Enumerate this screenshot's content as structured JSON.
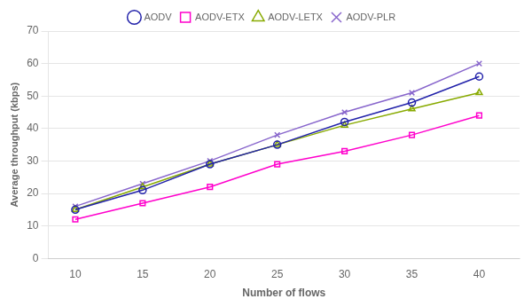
{
  "chart_data": {
    "type": "line",
    "xlabel": "Number of flows",
    "ylabel": "Average throughput (kbps)",
    "x": [
      10,
      15,
      20,
      25,
      30,
      35,
      40
    ],
    "series": [
      {
        "name": "AODV",
        "color": "#2222aa",
        "marker": "circle",
        "values": [
          15,
          21,
          29,
          35,
          42,
          48,
          56
        ]
      },
      {
        "name": "AODV-ETX",
        "color": "#ff00cc",
        "marker": "square",
        "values": [
          12,
          17,
          22,
          29,
          33,
          38,
          44
        ]
      },
      {
        "name": "AODV-LETX",
        "color": "#88aa00",
        "marker": "triangle",
        "values": [
          15,
          22,
          29,
          35,
          41,
          46,
          51
        ]
      },
      {
        "name": "AODV-PLR",
        "color": "#8866cc",
        "marker": "x",
        "values": [
          16,
          23,
          30,
          38,
          45,
          51,
          60
        ]
      }
    ],
    "xlim": [
      8,
      43
    ],
    "xticks": [
      10,
      15,
      20,
      25,
      30,
      35,
      40
    ],
    "ylim": [
      0,
      70
    ],
    "yticks": [
      0,
      10,
      20,
      30,
      40,
      50,
      60,
      70
    ],
    "grid": "y",
    "legend": "top"
  }
}
